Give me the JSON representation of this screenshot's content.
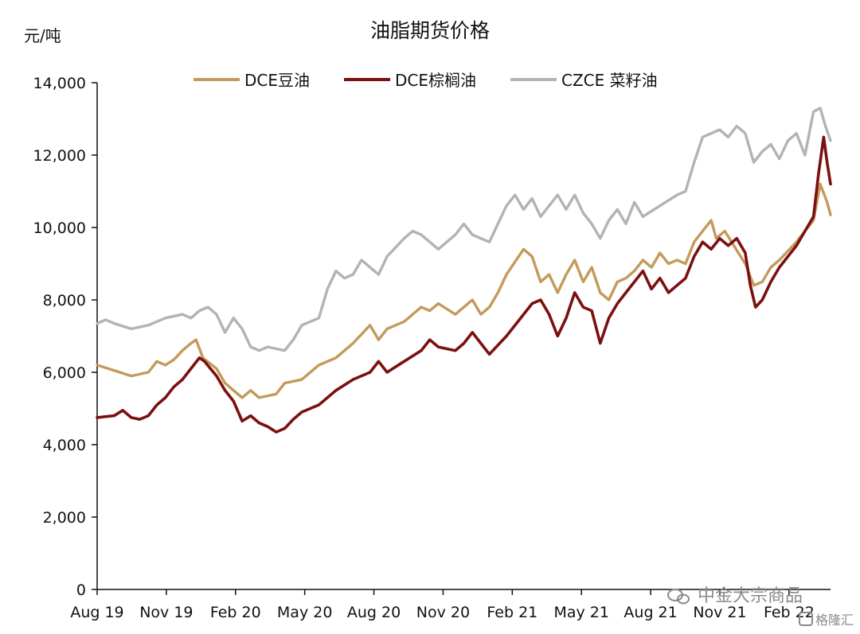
{
  "chart_data": {
    "type": "line",
    "title": "油脂期货价格",
    "ylabel": "元/吨",
    "xlabel": "",
    "ylim": [
      0,
      14000
    ],
    "yticks": [
      0,
      2000,
      4000,
      6000,
      8000,
      10000,
      12000,
      14000
    ],
    "ytick_labels": [
      "0",
      "2,000",
      "4,000",
      "6,000",
      "8,000",
      "10,000",
      "12,000",
      "14,000"
    ],
    "xticks": [
      "Aug 19",
      "Nov 19",
      "Feb 20",
      "May 20",
      "Aug 20",
      "Nov 20",
      "Feb 21",
      "May 21",
      "Aug 21",
      "Nov 21",
      "Feb 22"
    ],
    "legend_position": "top",
    "grid": false,
    "series": [
      {
        "name": "DCE豆油",
        "color": "#c49a5c",
        "values": [
          [
            0,
            6200
          ],
          [
            1,
            6050
          ],
          [
            2,
            5900
          ],
          [
            3,
            6000
          ],
          [
            3.5,
            6300
          ],
          [
            4,
            6200
          ],
          [
            4.5,
            6350
          ],
          [
            5,
            6600
          ],
          [
            5.5,
            6800
          ],
          [
            5.8,
            6900
          ],
          [
            6.2,
            6400
          ],
          [
            7,
            6100
          ],
          [
            7.5,
            5700
          ],
          [
            8,
            5500
          ],
          [
            8.5,
            5300
          ],
          [
            9,
            5500
          ],
          [
            9.5,
            5300
          ],
          [
            10,
            5350
          ],
          [
            10.5,
            5400
          ],
          [
            11,
            5700
          ],
          [
            12,
            5800
          ],
          [
            13,
            6200
          ],
          [
            14,
            6400
          ],
          [
            15,
            6800
          ],
          [
            16,
            7300
          ],
          [
            16.5,
            6900
          ],
          [
            17,
            7200
          ],
          [
            18,
            7400
          ],
          [
            19,
            7800
          ],
          [
            19.5,
            7700
          ],
          [
            20,
            7900
          ],
          [
            21,
            7600
          ],
          [
            22,
            8000
          ],
          [
            22.5,
            7600
          ],
          [
            23,
            7800
          ],
          [
            23.5,
            8200
          ],
          [
            24,
            8700
          ],
          [
            25,
            9400
          ],
          [
            25.5,
            9200
          ],
          [
            26,
            8500
          ],
          [
            26.5,
            8700
          ],
          [
            27,
            8200
          ],
          [
            27.5,
            8700
          ],
          [
            28,
            9100
          ],
          [
            28.5,
            8500
          ],
          [
            29,
            8900
          ],
          [
            29.5,
            8200
          ],
          [
            30,
            8000
          ],
          [
            30.5,
            8500
          ],
          [
            31,
            8600
          ],
          [
            31.5,
            8800
          ],
          [
            32,
            9100
          ],
          [
            32.5,
            8900
          ],
          [
            33,
            9300
          ],
          [
            33.5,
            9000
          ],
          [
            34,
            9100
          ],
          [
            34.5,
            9000
          ],
          [
            35,
            9600
          ],
          [
            35.5,
            9900
          ],
          [
            36,
            10200
          ],
          [
            36.3,
            9700
          ],
          [
            36.8,
            9900
          ],
          [
            37.2,
            9600
          ],
          [
            37.6,
            9300
          ],
          [
            38,
            9000
          ],
          [
            38.5,
            8400
          ],
          [
            39,
            8500
          ],
          [
            39.5,
            8900
          ],
          [
            40,
            9100
          ],
          [
            41,
            9600
          ],
          [
            41.5,
            9900
          ],
          [
            42,
            10200
          ],
          [
            42.4,
            11200
          ],
          [
            42.8,
            10700
          ],
          [
            43,
            10350
          ]
        ]
      },
      {
        "name": "DCE棕榈油",
        "color": "#7b1010",
        "values": [
          [
            0,
            4750
          ],
          [
            1,
            4800
          ],
          [
            1.5,
            4950
          ],
          [
            2,
            4750
          ],
          [
            2.5,
            4700
          ],
          [
            3,
            4800
          ],
          [
            3.5,
            5100
          ],
          [
            4,
            5300
          ],
          [
            4.5,
            5600
          ],
          [
            5,
            5800
          ],
          [
            5.5,
            6100
          ],
          [
            6,
            6400
          ],
          [
            6.3,
            6300
          ],
          [
            7,
            5900
          ],
          [
            7.5,
            5500
          ],
          [
            8,
            5200
          ],
          [
            8.5,
            4650
          ],
          [
            9,
            4800
          ],
          [
            9.5,
            4600
          ],
          [
            10,
            4500
          ],
          [
            10.5,
            4350
          ],
          [
            11,
            4450
          ],
          [
            11.5,
            4700
          ],
          [
            12,
            4900
          ],
          [
            13,
            5100
          ],
          [
            14,
            5500
          ],
          [
            15,
            5800
          ],
          [
            16,
            6000
          ],
          [
            16.5,
            6300
          ],
          [
            17,
            6000
          ],
          [
            18,
            6300
          ],
          [
            19,
            6600
          ],
          [
            19.5,
            6900
          ],
          [
            20,
            6700
          ],
          [
            21,
            6600
          ],
          [
            21.5,
            6800
          ],
          [
            22,
            7100
          ],
          [
            22.5,
            6800
          ],
          [
            23,
            6500
          ],
          [
            24,
            7000
          ],
          [
            25,
            7600
          ],
          [
            25.5,
            7900
          ],
          [
            26,
            8000
          ],
          [
            26.5,
            7600
          ],
          [
            27,
            7000
          ],
          [
            27.5,
            7500
          ],
          [
            28,
            8200
          ],
          [
            28.5,
            7800
          ],
          [
            29,
            7700
          ],
          [
            29.5,
            6800
          ],
          [
            30,
            7500
          ],
          [
            30.5,
            7900
          ],
          [
            31,
            8200
          ],
          [
            31.5,
            8500
          ],
          [
            32,
            8800
          ],
          [
            32.5,
            8300
          ],
          [
            33,
            8600
          ],
          [
            33.5,
            8200
          ],
          [
            34,
            8400
          ],
          [
            34.5,
            8600
          ],
          [
            35,
            9200
          ],
          [
            35.5,
            9600
          ],
          [
            36,
            9400
          ],
          [
            36.5,
            9700
          ],
          [
            37,
            9500
          ],
          [
            37.5,
            9700
          ],
          [
            38,
            9300
          ],
          [
            38.3,
            8400
          ],
          [
            38.6,
            7800
          ],
          [
            39,
            8000
          ],
          [
            39.5,
            8500
          ],
          [
            40,
            8900
          ],
          [
            40.5,
            9200
          ],
          [
            41,
            9500
          ],
          [
            41.5,
            9900
          ],
          [
            42,
            10300
          ],
          [
            42.3,
            11500
          ],
          [
            42.6,
            12500
          ],
          [
            42.8,
            11800
          ],
          [
            43,
            11200
          ]
        ]
      },
      {
        "name": "CZCE 菜籽油",
        "color": "#b3b3b3",
        "values": [
          [
            0,
            7350
          ],
          [
            0.5,
            7450
          ],
          [
            1,
            7350
          ],
          [
            2,
            7200
          ],
          [
            3,
            7300
          ],
          [
            3.5,
            7400
          ],
          [
            4,
            7500
          ],
          [
            5,
            7600
          ],
          [
            5.5,
            7500
          ],
          [
            6,
            7700
          ],
          [
            6.5,
            7800
          ],
          [
            7,
            7600
          ],
          [
            7.5,
            7100
          ],
          [
            8,
            7500
          ],
          [
            8.5,
            7200
          ],
          [
            9,
            6700
          ],
          [
            9.5,
            6600
          ],
          [
            10,
            6700
          ],
          [
            11,
            6600
          ],
          [
            11.5,
            6900
          ],
          [
            12,
            7300
          ],
          [
            13,
            7500
          ],
          [
            13.5,
            8300
          ],
          [
            14,
            8800
          ],
          [
            14.5,
            8600
          ],
          [
            15,
            8700
          ],
          [
            15.5,
            9100
          ],
          [
            16,
            8900
          ],
          [
            16.5,
            8700
          ],
          [
            17,
            9200
          ],
          [
            18,
            9700
          ],
          [
            18.5,
            9900
          ],
          [
            19,
            9800
          ],
          [
            19.5,
            9600
          ],
          [
            20,
            9400
          ],
          [
            21,
            9800
          ],
          [
            21.5,
            10100
          ],
          [
            22,
            9800
          ],
          [
            22.5,
            9700
          ],
          [
            23,
            9600
          ],
          [
            23.5,
            10100
          ],
          [
            24,
            10600
          ],
          [
            24.5,
            10900
          ],
          [
            25,
            10500
          ],
          [
            25.5,
            10800
          ],
          [
            26,
            10300
          ],
          [
            26.5,
            10600
          ],
          [
            27,
            10900
          ],
          [
            27.5,
            10500
          ],
          [
            28,
            10900
          ],
          [
            28.5,
            10400
          ],
          [
            29,
            10100
          ],
          [
            29.5,
            9700
          ],
          [
            30,
            10200
          ],
          [
            30.5,
            10500
          ],
          [
            31,
            10100
          ],
          [
            31.5,
            10700
          ],
          [
            32,
            10300
          ],
          [
            33,
            10600
          ],
          [
            34,
            10900
          ],
          [
            34.5,
            11000
          ],
          [
            35,
            11800
          ],
          [
            35.5,
            12500
          ],
          [
            36,
            12600
          ],
          [
            36.5,
            12700
          ],
          [
            37,
            12500
          ],
          [
            37.5,
            12800
          ],
          [
            38,
            12600
          ],
          [
            38.5,
            11800
          ],
          [
            39,
            12100
          ],
          [
            39.5,
            12300
          ],
          [
            40,
            11900
          ],
          [
            40.5,
            12400
          ],
          [
            41,
            12600
          ],
          [
            41.5,
            12000
          ],
          [
            42,
            13200
          ],
          [
            42.4,
            13300
          ],
          [
            42.7,
            12800
          ],
          [
            43,
            12400
          ]
        ]
      }
    ],
    "x_domain": [
      0,
      43
    ]
  },
  "watermark": {
    "text": "中金大宗商品",
    "badge": "格隆汇"
  }
}
